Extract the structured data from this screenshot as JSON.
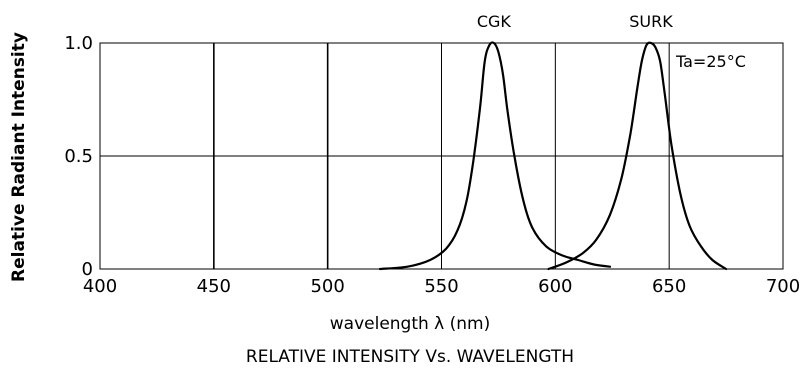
{
  "chart_data": {
    "type": "line",
    "title": "RELATIVE INTENSITY Vs. WAVELENGTH",
    "xlabel": "wavelength λ  (nm)",
    "ylabel": "Relative Radiant Intensity",
    "xlim": [
      400,
      700
    ],
    "ylim": [
      0,
      1.0
    ],
    "x_ticks": [
      "400",
      "450",
      "500",
      "550",
      "600",
      "650",
      "700"
    ],
    "y_ticks": [
      "0",
      "0.5",
      "1.0"
    ],
    "grid": true,
    "annotation": "Ta=25°C",
    "series": [
      {
        "name": "CGK",
        "x": [
          523,
          535,
          545,
          552,
          557,
          561,
          564,
          567,
          569,
          571,
          573,
          575,
          577,
          579,
          582,
          586,
          590,
          596,
          603,
          610,
          617,
          624
        ],
        "y": [
          0,
          0.01,
          0.04,
          0.09,
          0.17,
          0.3,
          0.48,
          0.72,
          0.92,
          0.99,
          1.0,
          0.96,
          0.86,
          0.7,
          0.5,
          0.3,
          0.18,
          0.1,
          0.06,
          0.04,
          0.02,
          0.01
        ]
      },
      {
        "name": "SURK",
        "x": [
          597,
          605,
          612,
          618,
          624,
          629,
          633,
          636,
          638,
          640,
          642,
          644,
          646,
          648,
          651,
          655,
          659,
          664,
          669,
          675
        ],
        "y": [
          0,
          0.03,
          0.07,
          0.13,
          0.24,
          0.4,
          0.6,
          0.8,
          0.92,
          0.99,
          1.0,
          0.98,
          0.92,
          0.78,
          0.55,
          0.33,
          0.19,
          0.1,
          0.04,
          0
        ]
      }
    ]
  }
}
